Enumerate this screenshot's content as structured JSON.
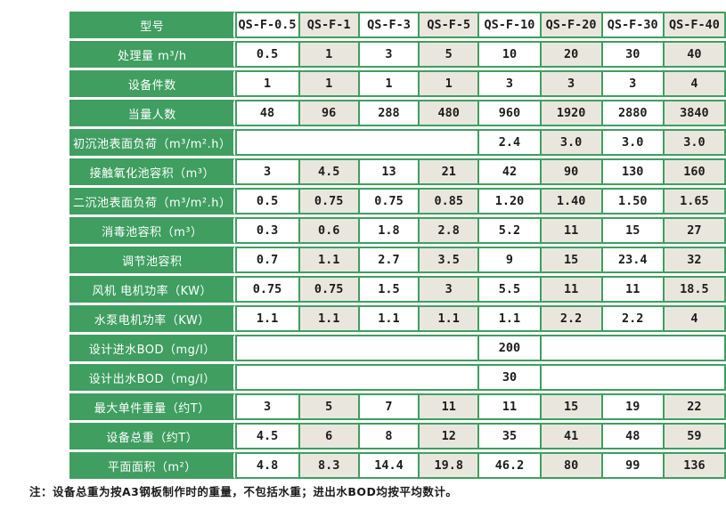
{
  "colors": {
    "green": "#3f9e60",
    "beige": "#e9e7dd",
    "white": "#ffffff",
    "text": "#1c1c1c"
  },
  "table": {
    "header": {
      "label": "型号",
      "models": [
        "QS-F-0.5",
        "QS-F-1",
        "QS-F-3",
        "QS-F-5",
        "QS-F-10",
        "QS-F-20",
        "QS-F-30",
        "QS-F-40"
      ]
    },
    "rows": [
      {
        "label": "处理量 m³/h",
        "cells": [
          {
            "v": "0.5",
            "span": 1
          },
          {
            "v": "1",
            "span": 1
          },
          {
            "v": "3",
            "span": 1
          },
          {
            "v": "5",
            "span": 1
          },
          {
            "v": "10",
            "span": 1
          },
          {
            "v": "20",
            "span": 1
          },
          {
            "v": "30",
            "span": 1
          },
          {
            "v": "40",
            "span": 1
          }
        ]
      },
      {
        "label": "设备件数",
        "cells": [
          {
            "v": "1",
            "span": 1
          },
          {
            "v": "1",
            "span": 1
          },
          {
            "v": "1",
            "span": 1
          },
          {
            "v": "1",
            "span": 1
          },
          {
            "v": "3",
            "span": 1
          },
          {
            "v": "3",
            "span": 1
          },
          {
            "v": "3",
            "span": 1
          },
          {
            "v": "4",
            "span": 1
          }
        ]
      },
      {
        "label": "当量人数",
        "cells": [
          {
            "v": "48",
            "span": 1
          },
          {
            "v": "96",
            "span": 1
          },
          {
            "v": "288",
            "span": 1
          },
          {
            "v": "480",
            "span": 1
          },
          {
            "v": "960",
            "span": 1
          },
          {
            "v": "1920",
            "span": 1
          },
          {
            "v": "2880",
            "span": 1
          },
          {
            "v": "3840",
            "span": 1
          }
        ]
      },
      {
        "label": "初沉池表面负荷（m³/m².h）",
        "cells": [
          {
            "v": "",
            "span": 4
          },
          {
            "v": "2.4",
            "span": 1
          },
          {
            "v": "3.0",
            "span": 1
          },
          {
            "v": "3.0",
            "span": 1
          },
          {
            "v": "3.0",
            "span": 1
          }
        ]
      },
      {
        "label": "接触氧化池容积（m³）",
        "cells": [
          {
            "v": "3",
            "span": 1
          },
          {
            "v": "4.5",
            "span": 1
          },
          {
            "v": "13",
            "span": 1
          },
          {
            "v": "21",
            "span": 1
          },
          {
            "v": "42",
            "span": 1
          },
          {
            "v": "90",
            "span": 1
          },
          {
            "v": "130",
            "span": 1
          },
          {
            "v": "160",
            "span": 1
          }
        ]
      },
      {
        "label": "二沉池表面负荷（m³/m².h）",
        "cells": [
          {
            "v": "0.5",
            "span": 1
          },
          {
            "v": "0.75",
            "span": 1
          },
          {
            "v": "0.75",
            "span": 1
          },
          {
            "v": "0.85",
            "span": 1
          },
          {
            "v": "1.20",
            "span": 1
          },
          {
            "v": "1.40",
            "span": 1
          },
          {
            "v": "1.50",
            "span": 1
          },
          {
            "v": "1.65",
            "span": 1
          }
        ]
      },
      {
        "label": "消毒池容积（m³）",
        "cells": [
          {
            "v": "0.3",
            "span": 1
          },
          {
            "v": "0.6",
            "span": 1
          },
          {
            "v": "1.8",
            "span": 1
          },
          {
            "v": "2.8",
            "span": 1
          },
          {
            "v": "5.2",
            "span": 1
          },
          {
            "v": "11",
            "span": 1
          },
          {
            "v": "15",
            "span": 1
          },
          {
            "v": "27",
            "span": 1
          }
        ]
      },
      {
        "label": "调节池容积",
        "cells": [
          {
            "v": "0.7",
            "span": 1
          },
          {
            "v": "1.1",
            "span": 1
          },
          {
            "v": "2.7",
            "span": 1
          },
          {
            "v": "3.5",
            "span": 1
          },
          {
            "v": "9",
            "span": 1
          },
          {
            "v": "15",
            "span": 1
          },
          {
            "v": "23.4",
            "span": 1
          },
          {
            "v": "32",
            "span": 1
          }
        ]
      },
      {
        "label": "风机 电机功率（KW）",
        "cells": [
          {
            "v": "0.75",
            "span": 1
          },
          {
            "v": "0.75",
            "span": 1
          },
          {
            "v": "1.5",
            "span": 1
          },
          {
            "v": "3",
            "span": 1
          },
          {
            "v": "5.5",
            "span": 1
          },
          {
            "v": "11",
            "span": 1
          },
          {
            "v": "11",
            "span": 1
          },
          {
            "v": "18.5",
            "span": 1
          }
        ]
      },
      {
        "label": "水泵电机功率（KW）",
        "cells": [
          {
            "v": "1.1",
            "span": 1
          },
          {
            "v": "1.1",
            "span": 1
          },
          {
            "v": "1.1",
            "span": 1
          },
          {
            "v": "1.1",
            "span": 1
          },
          {
            "v": "1.1",
            "span": 1
          },
          {
            "v": "2.2",
            "span": 1
          },
          {
            "v": "2.2",
            "span": 1
          },
          {
            "v": "4",
            "span": 1
          }
        ]
      },
      {
        "label": "设计进水BOD（mg/l）",
        "cells": [
          {
            "v": "",
            "span": 4
          },
          {
            "v": "200",
            "span": 1
          },
          {
            "v": "",
            "span": 3
          }
        ]
      },
      {
        "label": "设计出水BOD（mg/l）",
        "cells": [
          {
            "v": "",
            "span": 4
          },
          {
            "v": "30",
            "span": 1
          },
          {
            "v": "",
            "span": 3
          }
        ]
      },
      {
        "label": "最大单件重量（约T）",
        "cells": [
          {
            "v": "3",
            "span": 1
          },
          {
            "v": "5",
            "span": 1
          },
          {
            "v": "7",
            "span": 1
          },
          {
            "v": "11",
            "span": 1
          },
          {
            "v": "11",
            "span": 1
          },
          {
            "v": "15",
            "span": 1
          },
          {
            "v": "19",
            "span": 1
          },
          {
            "v": "22",
            "span": 1
          }
        ]
      },
      {
        "label": "设备总重（约T）",
        "cells": [
          {
            "v": "4.5",
            "span": 1
          },
          {
            "v": "6",
            "span": 1
          },
          {
            "v": "8",
            "span": 1
          },
          {
            "v": "12",
            "span": 1
          },
          {
            "v": "35",
            "span": 1
          },
          {
            "v": "41",
            "span": 1
          },
          {
            "v": "48",
            "span": 1
          },
          {
            "v": "59",
            "span": 1
          }
        ]
      },
      {
        "label": "平面面积（m²）",
        "cells": [
          {
            "v": "4.8",
            "span": 1
          },
          {
            "v": "8.3",
            "span": 1
          },
          {
            "v": "14.4",
            "span": 1
          },
          {
            "v": "19.8",
            "span": 1
          },
          {
            "v": "46.2",
            "span": 1
          },
          {
            "v": "80",
            "span": 1
          },
          {
            "v": "99",
            "span": 1
          },
          {
            "v": "136",
            "span": 1
          }
        ]
      }
    ]
  },
  "note": "注：设备总重为按A3钢板制作时的重量，不包括水重；进出水BOD均按平均数计。"
}
